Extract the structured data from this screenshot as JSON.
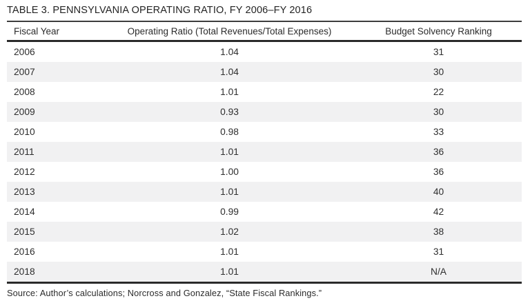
{
  "table": {
    "title": "TABLE 3. PENNSYLVANIA OPERATING RATIO, FY 2006–FY 2016",
    "columns": [
      "Fiscal Year",
      "Operating Ratio (Total Revenues/Total Expenses)",
      "Budget Solvency Ranking"
    ],
    "rows": [
      {
        "year": "2006",
        "ratio": "1.04",
        "ranking": "31"
      },
      {
        "year": "2007",
        "ratio": "1.04",
        "ranking": "30"
      },
      {
        "year": "2008",
        "ratio": "1.01",
        "ranking": "22"
      },
      {
        "year": "2009",
        "ratio": "0.93",
        "ranking": "30"
      },
      {
        "year": "2010",
        "ratio": "0.98",
        "ranking": "33"
      },
      {
        "year": "2011",
        "ratio": "1.01",
        "ranking": "36"
      },
      {
        "year": "2012",
        "ratio": "1.00",
        "ranking": "36"
      },
      {
        "year": "2013",
        "ratio": "1.01",
        "ranking": "40"
      },
      {
        "year": "2014",
        "ratio": "0.99",
        "ranking": "42"
      },
      {
        "year": "2015",
        "ratio": "1.02",
        "ranking": "38"
      },
      {
        "year": "2016",
        "ratio": "1.01",
        "ranking": "31"
      },
      {
        "year": "2018",
        "ratio": "1.01",
        "ranking": "N/A"
      }
    ],
    "source": "Source: Author’s calculations; Norcross and Gonzalez, “State Fiscal Rankings.”"
  },
  "chart_data": {
    "type": "table",
    "title": "TABLE 3. PENNSYLVANIA OPERATING RATIO, FY 2006–FY 2016",
    "columns": [
      "Fiscal Year",
      "Operating Ratio (Total Revenues/Total Expenses)",
      "Budget Solvency Ranking"
    ],
    "rows": [
      [
        "2006",
        "1.04",
        "31"
      ],
      [
        "2007",
        "1.04",
        "30"
      ],
      [
        "2008",
        "1.01",
        "22"
      ],
      [
        "2009",
        "0.93",
        "30"
      ],
      [
        "2010",
        "0.98",
        "33"
      ],
      [
        "2011",
        "1.01",
        "36"
      ],
      [
        "2012",
        "1.00",
        "36"
      ],
      [
        "2013",
        "1.01",
        "40"
      ],
      [
        "2014",
        "0.99",
        "42"
      ],
      [
        "2015",
        "1.02",
        "38"
      ],
      [
        "2016",
        "1.01",
        "31"
      ],
      [
        "2018",
        "1.01",
        "N/A"
      ]
    ],
    "source": "Source: Author’s calculations; Norcross and Gonzalez, “State Fiscal Rankings.”"
  }
}
